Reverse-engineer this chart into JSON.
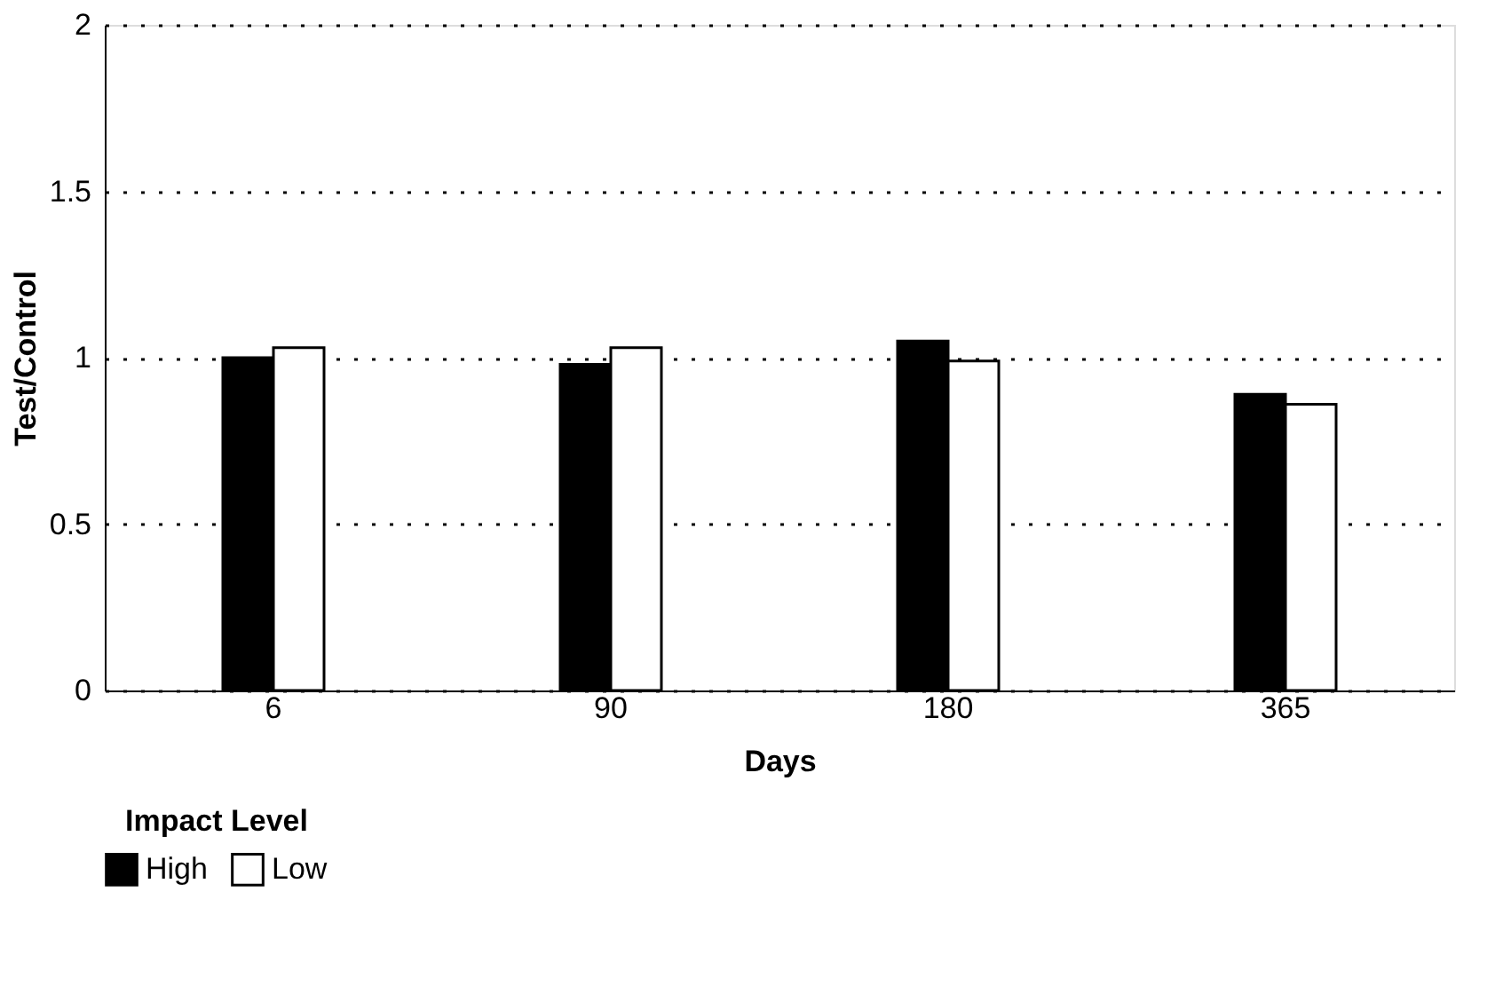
{
  "chart_data": {
    "type": "bar",
    "xlabel": "Days",
    "ylabel": "Test/Control",
    "legend_title": "Impact Level",
    "categories": [
      "6",
      "90",
      "180",
      "365"
    ],
    "series": [
      {
        "name": "High",
        "color": "#000000",
        "values": [
          1.0,
          0.98,
          1.05,
          0.89
        ]
      },
      {
        "name": "Low",
        "color": "#ffffff",
        "values": [
          1.03,
          1.03,
          0.99,
          0.86
        ]
      }
    ],
    "ylim": [
      0,
      2
    ],
    "yticks": [
      0,
      0.5,
      1,
      1.5,
      2
    ],
    "grid": "y",
    "legend": "bottom"
  }
}
